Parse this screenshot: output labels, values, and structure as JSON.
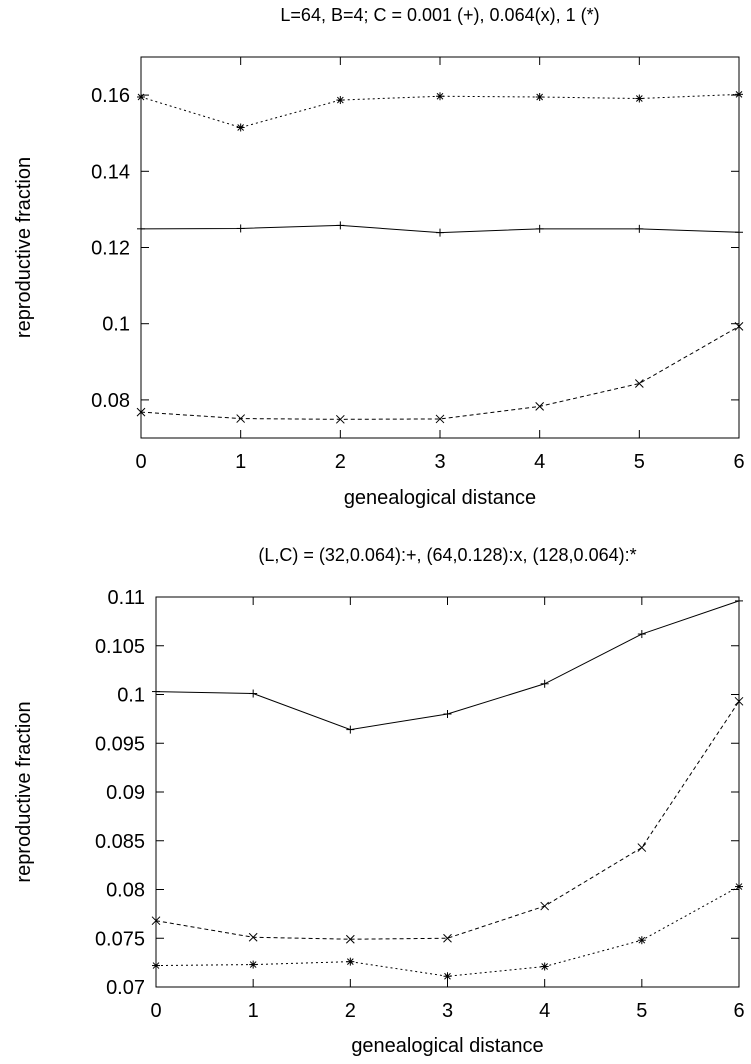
{
  "chart_data": [
    {
      "type": "line",
      "title": "L=64, B=4; C = 0.001 (+), 0.064(x), 1 (*)",
      "xlabel": "genealogical distance",
      "ylabel": "reproductive fraction",
      "xlim": [
        0,
        6
      ],
      "ylim": [
        0.07,
        0.17
      ],
      "x_ticks": [
        0,
        1,
        2,
        3,
        4,
        5,
        6
      ],
      "x_tick_labels": [
        "0",
        "1",
        "2",
        "3",
        "4",
        "5",
        "6"
      ],
      "y_ticks": [
        0.08,
        0.1,
        0.12,
        0.14,
        0.16
      ],
      "y_tick_labels": [
        "0.08",
        "0.1",
        "0.12",
        "0.14",
        "0.16"
      ],
      "grid": false,
      "x": [
        0,
        1,
        2,
        3,
        4,
        5,
        6
      ],
      "series": [
        {
          "marker": "plus",
          "dash": "",
          "values": [
            0.1249,
            0.125,
            0.1258,
            0.1239,
            0.1249,
            0.1249,
            0.124
          ]
        },
        {
          "marker": "x",
          "dash": "4,3",
          "values": [
            0.0768,
            0.0751,
            0.0749,
            0.075,
            0.0783,
            0.0843,
            0.0993
          ]
        },
        {
          "marker": "star",
          "dash": "2,3",
          "values": [
            0.1595,
            0.1515,
            0.1587,
            0.1597,
            0.1595,
            0.1591,
            0.1602
          ]
        }
      ]
    },
    {
      "type": "line",
      "title": "(L,C) = (32,0.064):+, (64,0.128):x, (128,0.064):*",
      "xlabel": "genealogical distance",
      "ylabel": "reproductive fraction",
      "xlim": [
        0,
        6
      ],
      "ylim": [
        0.07,
        0.11
      ],
      "x_ticks": [
        0,
        1,
        2,
        3,
        4,
        5,
        6
      ],
      "x_tick_labels": [
        "0",
        "1",
        "2",
        "3",
        "4",
        "5",
        "6"
      ],
      "y_ticks": [
        0.07,
        0.075,
        0.08,
        0.085,
        0.09,
        0.095,
        0.1,
        0.105,
        0.11
      ],
      "y_tick_labels": [
        "0.07",
        "0.075",
        "0.08",
        "0.085",
        "0.09",
        "0.095",
        "0.1",
        "0.105",
        "0.11"
      ],
      "grid": false,
      "x": [
        0,
        1,
        2,
        3,
        4,
        5,
        6
      ],
      "series": [
        {
          "marker": "plus",
          "dash": "",
          "values": [
            0.1003,
            0.1001,
            0.0964,
            0.098,
            0.1011,
            0.1062,
            0.1096
          ]
        },
        {
          "marker": "x",
          "dash": "4,3",
          "values": [
            0.0768,
            0.0751,
            0.0749,
            0.075,
            0.0783,
            0.0843,
            0.0993
          ]
        },
        {
          "marker": "star",
          "dash": "2,3",
          "values": [
            0.0722,
            0.0723,
            0.0726,
            0.0711,
            0.0721,
            0.0748,
            0.0803
          ]
        }
      ]
    }
  ]
}
